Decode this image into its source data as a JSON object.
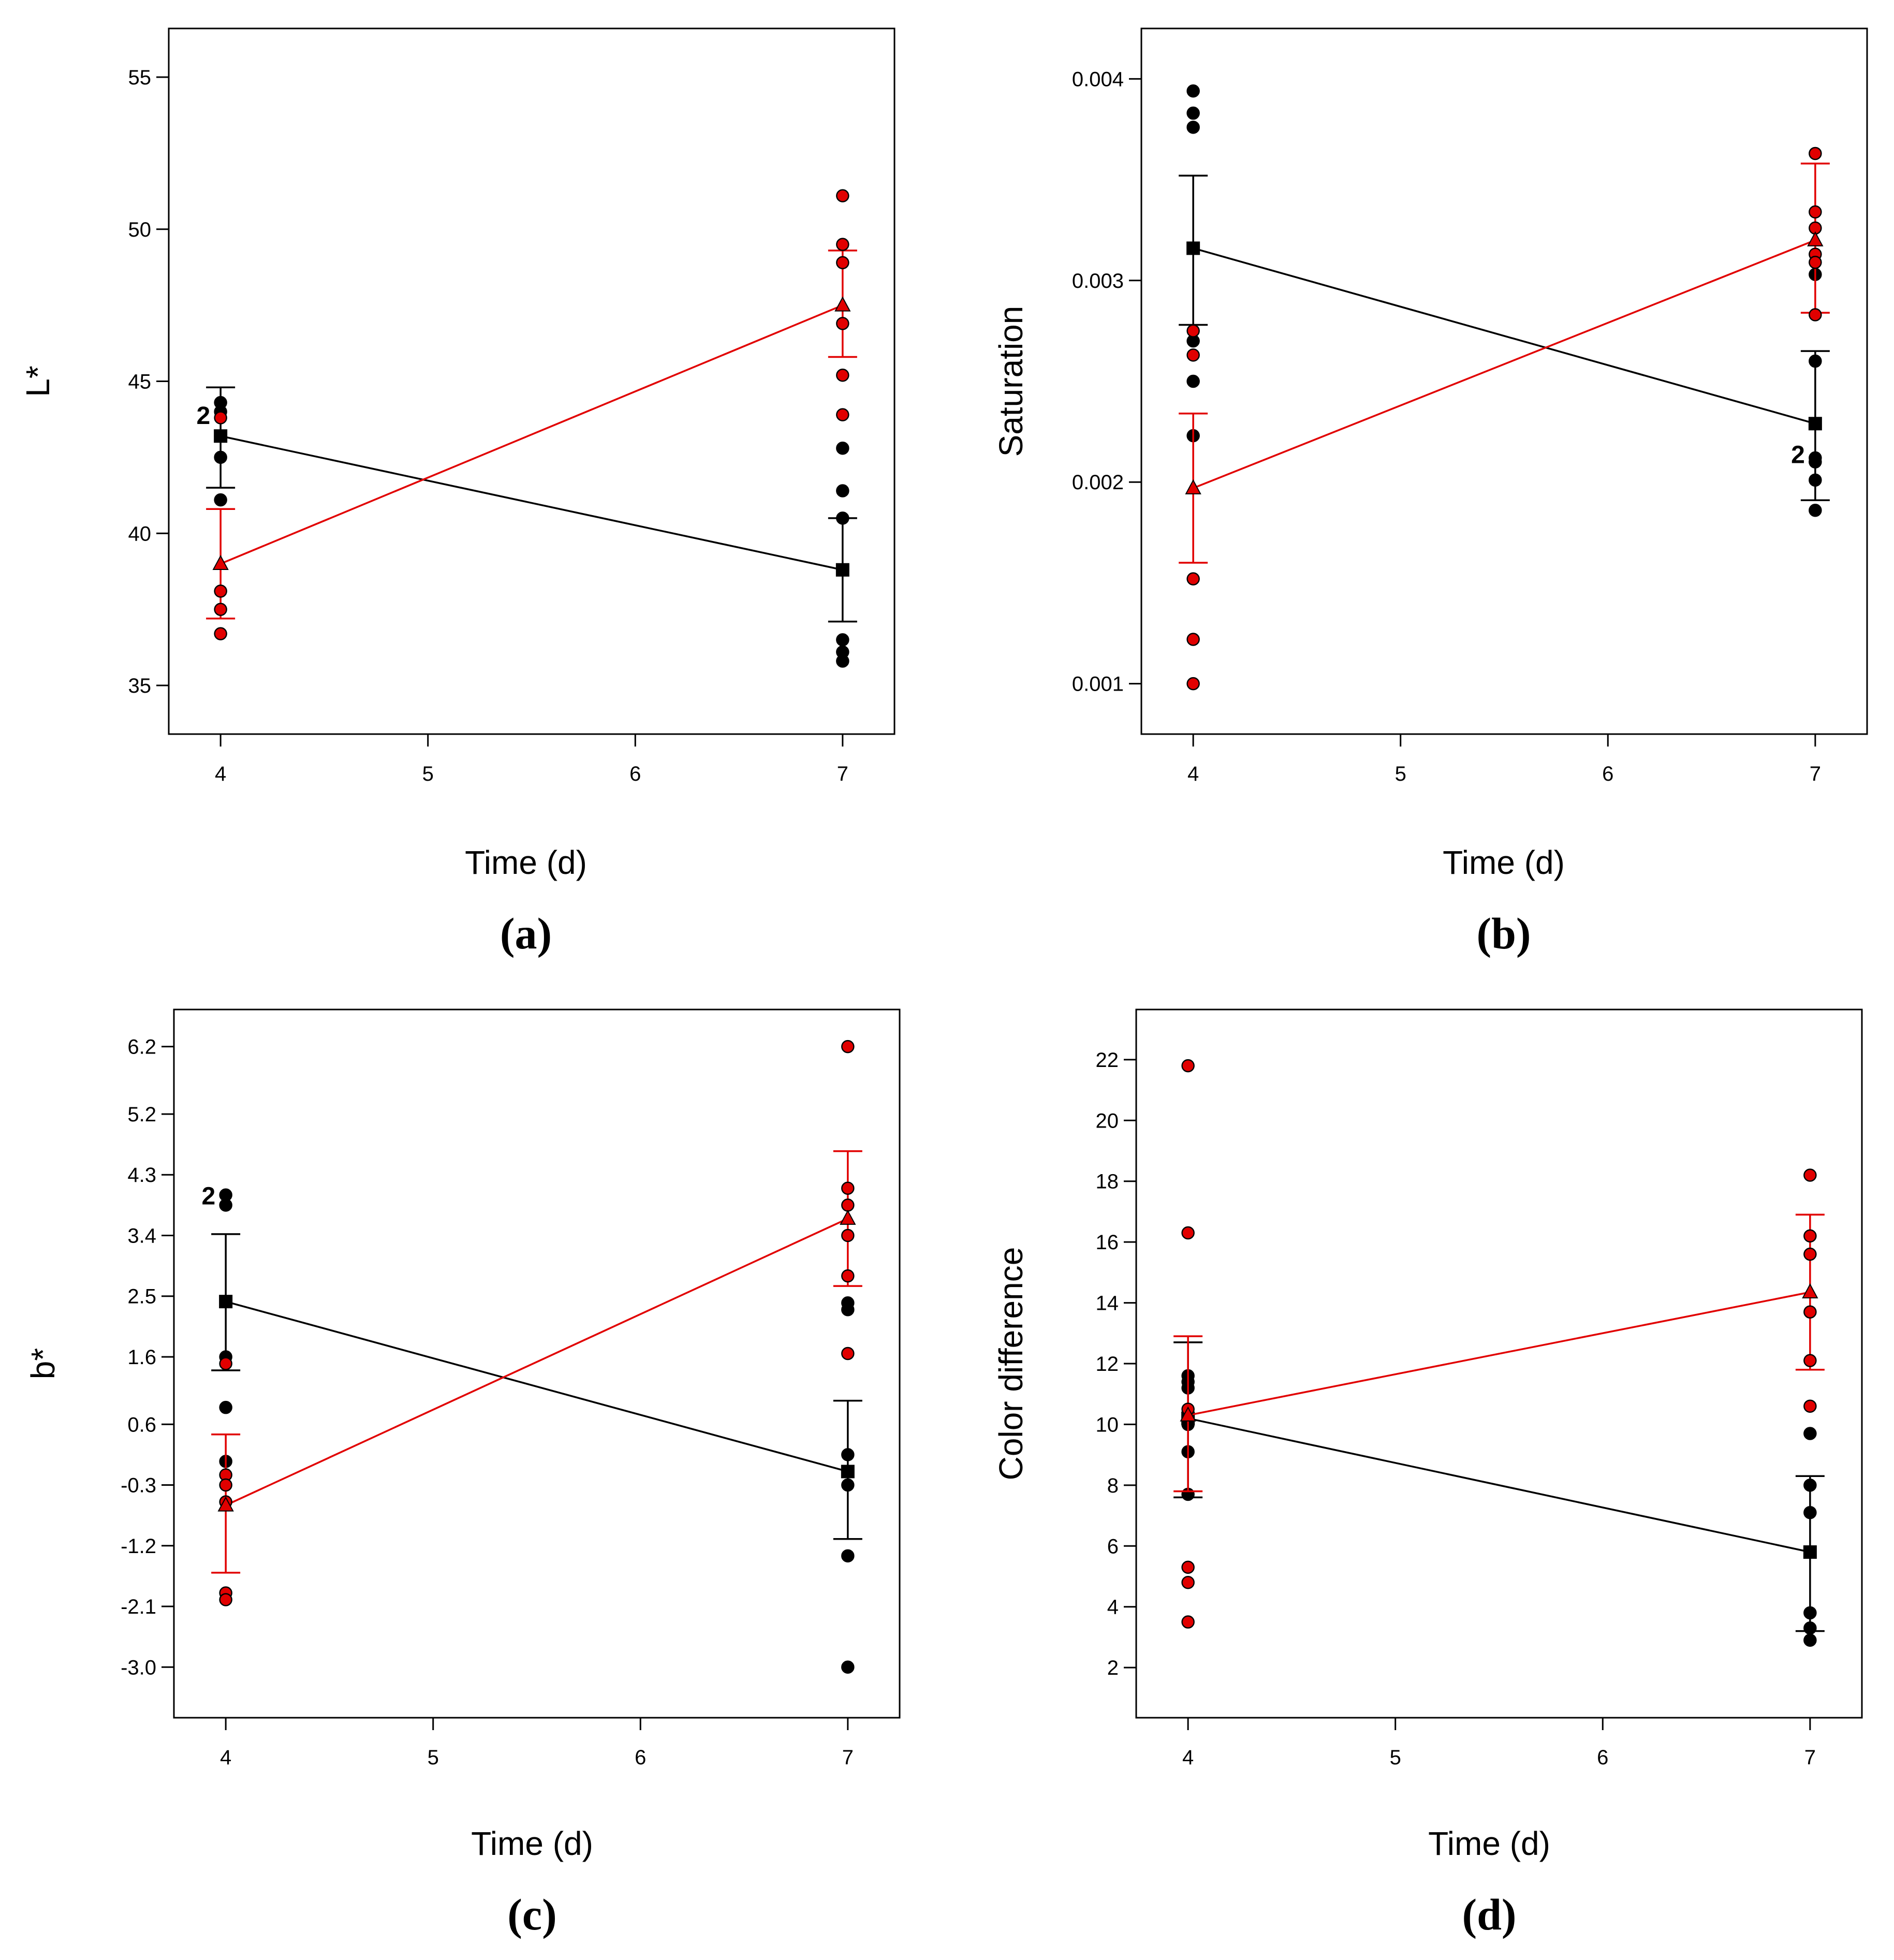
{
  "colors": {
    "group_a": "#000000",
    "group_b": "#e10000",
    "marker_edge": "#000000",
    "frame": "#000000"
  },
  "chart_data": [
    {
      "id": "a",
      "type": "scatter",
      "panel_label": "(a)",
      "xlabel": "Time (d)",
      "ylabel": "L*",
      "xlim": [
        3.75,
        7.25
      ],
      "ylim": [
        33.4,
        56.6
      ],
      "xticks": [
        4,
        5,
        6,
        7
      ],
      "xtick_labels": [
        "4",
        "5",
        "6",
        "7"
      ],
      "yticks": [
        35,
        40,
        45,
        50,
        55
      ],
      "ytick_labels": [
        "35",
        "40",
        "45",
        "50",
        "55"
      ],
      "series": [
        {
          "name": "black",
          "color": "#000000",
          "marker": "square",
          "points": [
            [
              4,
              44.3
            ],
            [
              4,
              44.0
            ],
            [
              4,
              43.2
            ],
            [
              4,
              42.5
            ],
            [
              4,
              41.1
            ],
            [
              7,
              42.8
            ],
            [
              7,
              41.4
            ],
            [
              7,
              40.5
            ],
            [
              7,
              36.5
            ],
            [
              7,
              36.1
            ],
            [
              7,
              35.8
            ]
          ],
          "means": [
            [
              4,
              43.2
            ],
            [
              7,
              38.8
            ]
          ],
          "errorbars": [
            [
              4,
              41.5,
              44.8
            ],
            [
              7,
              37.1,
              40.5
            ]
          ],
          "count_labels": [
            {
              "x": 4,
              "y": 43.9,
              "text": "2"
            }
          ]
        },
        {
          "name": "red",
          "color": "#e10000",
          "marker": "triangle",
          "points": [
            [
              4,
              43.8
            ],
            [
              4,
              38.1
            ],
            [
              4,
              37.5
            ],
            [
              4,
              36.7
            ],
            [
              7,
              51.1
            ],
            [
              7,
              49.5
            ],
            [
              7,
              48.9
            ],
            [
              7,
              46.9
            ],
            [
              7,
              45.2
            ],
            [
              7,
              43.9
            ]
          ],
          "means": [
            [
              4,
              39.0
            ],
            [
              7,
              47.5
            ]
          ],
          "errorbars": [
            [
              4,
              37.2,
              40.8
            ],
            [
              7,
              45.8,
              49.3
            ]
          ],
          "count_labels": []
        }
      ]
    },
    {
      "id": "b",
      "type": "scatter",
      "panel_label": "(b)",
      "xlabel": "Time (d)",
      "ylabel": "Saturation",
      "xlim": [
        3.75,
        7.25
      ],
      "ylim": [
        0.00075,
        0.00425
      ],
      "xticks": [
        4,
        5,
        6,
        7
      ],
      "xtick_labels": [
        "4",
        "5",
        "6",
        "7"
      ],
      "yticks": [
        0.001,
        0.002,
        0.003,
        0.004
      ],
      "ytick_labels": [
        "0.001",
        "0.002",
        "0.003",
        "0.004"
      ],
      "series": [
        {
          "name": "black",
          "color": "#000000",
          "marker": "square",
          "points": [
            [
              4,
              0.00394
            ],
            [
              4,
              0.00383
            ],
            [
              4,
              0.00376
            ],
            [
              4,
              0.0027
            ],
            [
              4,
              0.0025
            ],
            [
              4,
              0.00223
            ],
            [
              7,
              0.00303
            ],
            [
              7,
              0.0026
            ],
            [
              7,
              0.00212
            ],
            [
              7,
              0.0021
            ],
            [
              7,
              0.00201
            ],
            [
              7,
              0.00186
            ]
          ],
          "means": [
            [
              4,
              0.00316
            ],
            [
              7,
              0.00229
            ]
          ],
          "errorbars": [
            [
              4,
              0.00278,
              0.00352
            ],
            [
              7,
              0.00191,
              0.00265
            ]
          ],
          "count_labels": [
            {
              "x": 7,
              "y": 0.00214,
              "text": "2"
            }
          ]
        },
        {
          "name": "red",
          "color": "#e10000",
          "marker": "triangle",
          "points": [
            [
              4,
              0.00275
            ],
            [
              4,
              0.00263
            ],
            [
              4,
              0.00152
            ],
            [
              4,
              0.00122
            ],
            [
              4,
              0.001
            ],
            [
              7,
              0.00363
            ],
            [
              7,
              0.00334
            ],
            [
              7,
              0.00326
            ],
            [
              7,
              0.00313
            ],
            [
              7,
              0.00309
            ],
            [
              7,
              0.00283
            ]
          ],
          "means": [
            [
              4,
              0.00197
            ],
            [
              7,
              0.0032
            ]
          ],
          "errorbars": [
            [
              4,
              0.0016,
              0.00234
            ],
            [
              7,
              0.00284,
              0.00358
            ]
          ],
          "count_labels": []
        }
      ]
    },
    {
      "id": "c",
      "type": "scatter",
      "panel_label": "(c)",
      "xlabel": "Time (d)",
      "ylabel": "b*",
      "xlim": [
        3.75,
        7.25
      ],
      "ylim": [
        -3.75,
        6.75
      ],
      "xticks": [
        4,
        5,
        6,
        7
      ],
      "xtick_labels": [
        "4",
        "5",
        "6",
        "7"
      ],
      "yticks": [
        -3.0,
        -2.1,
        -1.2,
        -0.3,
        0.6,
        1.6,
        2.5,
        3.4,
        4.3,
        5.2,
        6.2
      ],
      "ytick_labels": [
        "-3.0",
        "-2.1",
        "-1.2",
        "-0.3",
        "0.6",
        "1.6",
        "2.5",
        "3.4",
        "4.3",
        "5.2",
        "6.2"
      ],
      "series": [
        {
          "name": "black",
          "color": "#000000",
          "marker": "square",
          "points": [
            [
              4,
              4.0
            ],
            [
              4,
              3.85
            ],
            [
              4,
              1.6
            ],
            [
              4,
              0.85
            ],
            [
              4,
              0.05
            ],
            [
              7,
              2.4
            ],
            [
              7,
              2.3
            ],
            [
              7,
              0.15
            ],
            [
              7,
              -0.3
            ],
            [
              7,
              -1.35
            ],
            [
              7,
              -3.0
            ]
          ],
          "means": [
            [
              4,
              2.42
            ],
            [
              7,
              -0.1
            ]
          ],
          "errorbars": [
            [
              4,
              1.4,
              3.42
            ],
            [
              7,
              -1.1,
              0.95
            ]
          ],
          "count_labels": [
            {
              "x": 4,
              "y": 4.0,
              "text": "2"
            }
          ]
        },
        {
          "name": "red",
          "color": "#e10000",
          "marker": "triangle",
          "points": [
            [
              4,
              1.5
            ],
            [
              4,
              -0.15
            ],
            [
              4,
              -0.3
            ],
            [
              4,
              -0.55
            ],
            [
              4,
              -1.9
            ],
            [
              4,
              -2.0
            ],
            [
              7,
              6.2
            ],
            [
              7,
              4.1
            ],
            [
              7,
              3.85
            ],
            [
              7,
              3.4
            ],
            [
              7,
              2.8
            ],
            [
              7,
              1.65
            ]
          ],
          "means": [
            [
              4,
              -0.6
            ],
            [
              7,
              3.65
            ]
          ],
          "errorbars": [
            [
              4,
              -1.6,
              0.45
            ],
            [
              7,
              2.65,
              4.65
            ]
          ],
          "count_labels": []
        }
      ]
    },
    {
      "id": "d",
      "type": "scatter",
      "panel_label": "(d)",
      "xlabel": "Time (d)",
      "ylabel": "Color difference",
      "xlim": [
        3.75,
        7.25
      ],
      "ylim": [
        0.35,
        23.65
      ],
      "xticks": [
        4,
        5,
        6,
        7
      ],
      "xtick_labels": [
        "4",
        "5",
        "6",
        "7"
      ],
      "yticks": [
        2,
        4,
        6,
        8,
        10,
        12,
        14,
        16,
        18,
        20,
        22
      ],
      "ytick_labels": [
        "2",
        "4",
        "6",
        "8",
        "10",
        "12",
        "14",
        "16",
        "18",
        "20",
        "22"
      ],
      "series": [
        {
          "name": "black",
          "color": "#000000",
          "marker": "square",
          "points": [
            [
              4,
              11.6
            ],
            [
              4,
              11.4
            ],
            [
              4,
              11.2
            ],
            [
              4,
              10.0
            ],
            [
              4,
              9.1
            ],
            [
              4,
              7.7
            ],
            [
              7,
              9.7
            ],
            [
              7,
              8.0
            ],
            [
              7,
              7.1
            ],
            [
              7,
              3.8
            ],
            [
              7,
              3.3
            ],
            [
              7,
              2.9
            ]
          ],
          "means": [
            [
              4,
              10.2
            ],
            [
              7,
              5.8
            ]
          ],
          "errorbars": [
            [
              4,
              7.6,
              12.7
            ],
            [
              7,
              3.2,
              8.3
            ]
          ],
          "count_labels": []
        },
        {
          "name": "red",
          "color": "#e10000",
          "marker": "triangle",
          "points": [
            [
              4,
              21.8
            ],
            [
              4,
              16.3
            ],
            [
              4,
              10.5
            ],
            [
              4,
              5.3
            ],
            [
              4,
              4.8
            ],
            [
              4,
              3.5
            ],
            [
              7,
              18.2
            ],
            [
              7,
              16.2
            ],
            [
              7,
              15.6
            ],
            [
              7,
              13.7
            ],
            [
              7,
              12.1
            ],
            [
              7,
              10.6
            ]
          ],
          "means": [
            [
              4,
              10.3
            ],
            [
              7,
              14.35
            ]
          ],
          "errorbars": [
            [
              4,
              7.8,
              12.9
            ],
            [
              7,
              11.8,
              16.9
            ]
          ],
          "count_labels": []
        }
      ]
    }
  ]
}
